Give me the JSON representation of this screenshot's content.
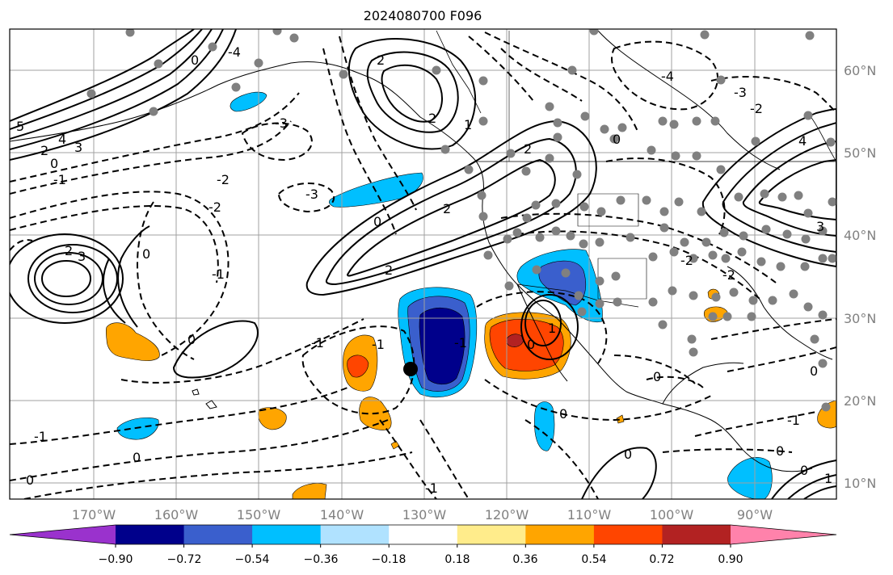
{
  "title": "2024080700 F096",
  "lat_labels": [
    "60°N",
    "50°N",
    "40°N",
    "30°N",
    "20°N",
    "10°N"
  ],
  "lon_labels": [
    "170°W",
    "160°W",
    "150°W",
    "140°W",
    "130°W",
    "120°W",
    "110°W",
    "100°W",
    "90°W"
  ],
  "colorbar": {
    "ticks": [
      "−0.90",
      "−0.72",
      "−0.54",
      "−0.36",
      "−0.18",
      "0.18",
      "0.36",
      "0.54",
      "0.72",
      "0.90"
    ],
    "colors": [
      "#9a32cd",
      "#00008b",
      "#3a5fcd",
      "#00bfff",
      "#b0e2ff",
      "#ffffff",
      "#ffec8b",
      "#ffa500",
      "#ff4500",
      "#b22222",
      "#ff82ab"
    ]
  },
  "fill_colors": {
    "orange": "#ffa500",
    "red_orange": "#ff4500",
    "dark_red": "#b22222",
    "light_blue": "#00bfff",
    "blue": "#3a5fcd",
    "navy": "#00008b"
  },
  "contour_labels": [
    "5",
    "4",
    "3",
    "2",
    "1",
    "0",
    "-1",
    "-2",
    "-3",
    "-4"
  ]
}
